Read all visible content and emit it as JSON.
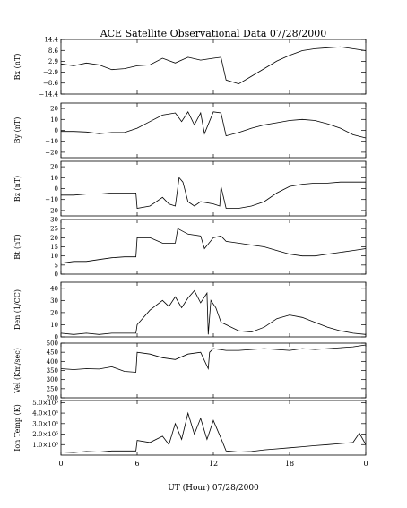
{
  "chart_data": {
    "type": "line",
    "title": "ACE Satellite Observational Data   07/28/2000",
    "xlabel": "UT (Hour)   07/28/2000",
    "x_ticks": [
      "0",
      "6",
      "12",
      "18",
      "0"
    ],
    "xlim": [
      0,
      24
    ],
    "grid": false,
    "series_color": "#000000",
    "panels": [
      {
        "ylabel": "Bx (nT)",
        "ylim": [
          -14.4,
          14.4
        ],
        "y_ticks": [
          14.4,
          8.6,
          2.9,
          -2.9,
          -8.6,
          -14.4
        ],
        "y_tick_labels": [
          "14.4",
          "8.6",
          "2.9",
          "−2.9",
          "−8.6",
          "−14.4"
        ],
        "x": [
          0,
          1,
          2,
          3,
          4,
          5,
          6,
          7,
          8,
          9,
          10,
          11,
          12,
          12.6,
          13,
          14,
          15,
          16,
          17,
          18,
          19,
          20,
          21,
          22,
          23,
          24
        ],
        "y": [
          1.5,
          0.5,
          2.0,
          1.0,
          -1.5,
          -1.0,
          0.5,
          1.0,
          4.5,
          2.0,
          5.0,
          3.5,
          4.5,
          5.0,
          -7.0,
          -9.0,
          -5.0,
          -1.0,
          3.0,
          6.0,
          8.5,
          9.5,
          10.0,
          10.5,
          9.5,
          8.5
        ]
      },
      {
        "ylabel": "By (nT)",
        "ylim": [
          -25,
          25
        ],
        "y_ticks": [
          20,
          10,
          0,
          -10,
          -20
        ],
        "y_tick_labels": [
          "20",
          "10",
          "0",
          "−10",
          "−20"
        ],
        "x": [
          0,
          1,
          2,
          3,
          4,
          5,
          6,
          7,
          8,
          9,
          9.5,
          10,
          10.5,
          11,
          11.3,
          12,
          12.6,
          13,
          14,
          15,
          16,
          17,
          18,
          19,
          20,
          21,
          22,
          23,
          24
        ],
        "y": [
          -1,
          -1,
          -1.5,
          -3,
          -2,
          -2,
          2,
          8,
          14,
          16,
          8,
          17,
          5,
          16,
          -3,
          17,
          16,
          -5,
          -2,
          2,
          5,
          7,
          9,
          10,
          9,
          6,
          2,
          -4,
          -7
        ]
      },
      {
        "ylabel": "Bz (nT)",
        "ylim": [
          -25,
          25
        ],
        "y_ticks": [
          20,
          10,
          0,
          -10,
          -20
        ],
        "y_tick_labels": [
          "20",
          "10",
          "0",
          "−10",
          "−20"
        ],
        "x": [
          0,
          1,
          2,
          3,
          4,
          5,
          5.9,
          6,
          7,
          8,
          8.5,
          9,
          9.3,
          9.6,
          10,
          10.5,
          11,
          12,
          12.5,
          12.6,
          13,
          14,
          15,
          16,
          17,
          18,
          19,
          20,
          21,
          22,
          23,
          24
        ],
        "y": [
          -6,
          -6,
          -5,
          -5,
          -4,
          -4,
          -4,
          -18,
          -16,
          -8,
          -14,
          -16,
          10,
          6,
          -12,
          -16,
          -12,
          -14,
          -16,
          2,
          -18,
          -18,
          -16,
          -12,
          -4,
          2,
          4,
          5,
          5,
          6,
          6,
          6
        ]
      },
      {
        "ylabel": "Bt (nT)",
        "ylim": [
          0,
          30
        ],
        "y_ticks": [
          30,
          25,
          20,
          15,
          10,
          5,
          0
        ],
        "y_tick_labels": [
          "30",
          "25",
          "20",
          "15",
          "10",
          "5",
          "0"
        ],
        "x": [
          0,
          1,
          2,
          3,
          4,
          5,
          5.9,
          6,
          7,
          8,
          9,
          9.2,
          10,
          11,
          11.3,
          12,
          12.6,
          13,
          14,
          15,
          16,
          17,
          18,
          19,
          20,
          21,
          22,
          23,
          24
        ],
        "y": [
          6,
          7,
          7,
          8,
          9,
          9.5,
          9.5,
          20,
          20,
          17,
          17,
          25,
          22,
          21,
          14,
          20,
          21,
          18,
          17,
          16,
          15,
          13,
          11,
          10,
          10,
          11,
          12,
          13,
          14
        ]
      },
      {
        "ylabel": "Den (1/CC)",
        "ylim": [
          0,
          45
        ],
        "y_ticks": [
          40,
          30,
          20,
          10,
          0
        ],
        "y_tick_labels": [
          "40",
          "30",
          "20",
          "10",
          "0"
        ],
        "x": [
          0,
          1,
          2,
          3,
          4,
          5,
          5.9,
          6,
          7,
          8,
          8.5,
          9,
          9.5,
          10,
          10.5,
          11,
          11.5,
          11.6,
          11.8,
          12.2,
          12.6,
          13,
          14,
          15,
          16,
          17,
          18,
          19,
          20,
          21,
          22,
          23,
          24
        ],
        "y": [
          3,
          2,
          3,
          2,
          3,
          3,
          3,
          10,
          22,
          30,
          25,
          33,
          24,
          32,
          38,
          28,
          36,
          2,
          30,
          24,
          12,
          10,
          5,
          4,
          8,
          15,
          18,
          16,
          12,
          8,
          5,
          3,
          2
        ]
      },
      {
        "ylabel": "Vel (Km/sec)",
        "ylim": [
          200,
          500
        ],
        "y_ticks": [
          500,
          450,
          400,
          350,
          300,
          250,
          200
        ],
        "y_tick_labels": [
          "500",
          "450",
          "400",
          "350",
          "300",
          "250",
          "200"
        ],
        "x": [
          0,
          1,
          2,
          3,
          4,
          5,
          5.9,
          6,
          7,
          8,
          9,
          10,
          11,
          11.6,
          11.7,
          12,
          13,
          14,
          15,
          16,
          17,
          18,
          19,
          20,
          21,
          22,
          23,
          24
        ],
        "y": [
          360,
          355,
          360,
          358,
          370,
          345,
          340,
          450,
          440,
          420,
          410,
          440,
          450,
          360,
          450,
          470,
          460,
          460,
          465,
          470,
          465,
          460,
          470,
          465,
          470,
          475,
          480,
          490
        ]
      },
      {
        "ylabel": "Ion Temp (K)",
        "ylim": [
          0,
          520000
        ],
        "y_ticks": [
          500000,
          400000,
          300000,
          200000,
          100000
        ],
        "y_tick_labels": [
          "5.0×10⁵",
          "4.0×10⁵",
          "3.0×10⁵",
          "2.0×10⁵",
          "1.0×10⁵"
        ],
        "x": [
          0,
          1,
          2,
          3,
          4,
          5,
          5.9,
          6,
          7,
          8,
          8.5,
          9,
          9.5,
          10,
          10.5,
          11,
          11.5,
          12,
          12.6,
          13,
          14,
          15,
          16,
          17,
          18,
          19,
          20,
          21,
          22,
          23,
          23.5,
          24
        ],
        "y": [
          30000,
          25000,
          35000,
          30000,
          40000,
          40000,
          40000,
          140000,
          120000,
          180000,
          100000,
          300000,
          150000,
          400000,
          200000,
          350000,
          150000,
          330000,
          160000,
          40000,
          30000,
          35000,
          50000,
          60000,
          70000,
          80000,
          90000,
          100000,
          110000,
          120000,
          210000,
          100000
        ]
      }
    ]
  }
}
